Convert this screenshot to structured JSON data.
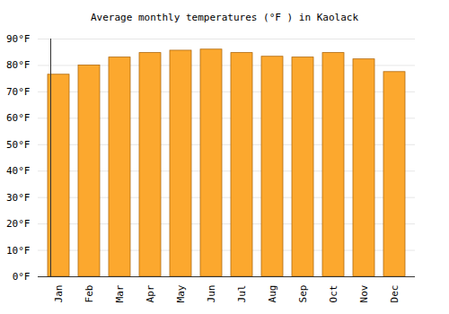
{
  "chart_data": {
    "type": "bar",
    "title": "Average monthly temperatures (°F ) in Kaolack",
    "categories": [
      "Jan",
      "Feb",
      "Mar",
      "Apr",
      "May",
      "Jun",
      "Jul",
      "Aug",
      "Sep",
      "Oct",
      "Nov",
      "Dec"
    ],
    "values": [
      76.5,
      80,
      83,
      84.7,
      85.6,
      86,
      84.7,
      83.3,
      83,
      84.7,
      82.3,
      77.5
    ],
    "color": "#fca82e",
    "ylim": [
      0,
      90
    ],
    "yticks": [
      {
        "value": 0,
        "label": "0°F"
      },
      {
        "value": 10,
        "label": "10°F"
      },
      {
        "value": 20,
        "label": "20°F"
      },
      {
        "value": 30,
        "label": "30°F"
      },
      {
        "value": 40,
        "label": "40°F"
      },
      {
        "value": 50,
        "label": "50°F"
      },
      {
        "value": 60,
        "label": "60°F"
      },
      {
        "value": 70,
        "label": "70°F"
      },
      {
        "value": 80,
        "label": "80°F"
      },
      {
        "value": 90,
        "label": "90°F"
      }
    ],
    "grid": true
  }
}
